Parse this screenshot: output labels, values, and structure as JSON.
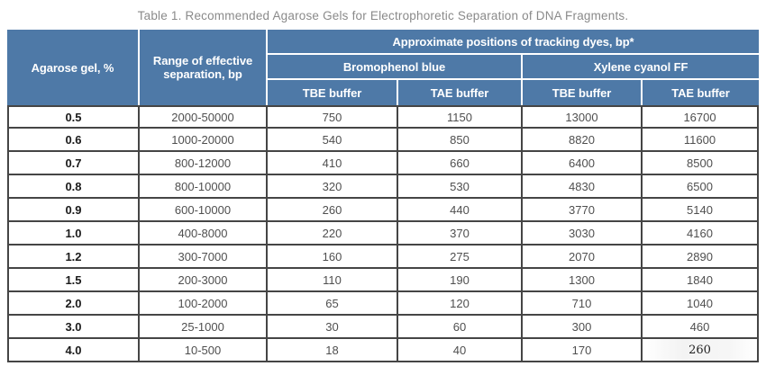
{
  "title": "Table 1. Recommended Agarose Gels for Electrophoretic Separation of DNA Fragments.",
  "colors": {
    "header_bg": "#4e79a7",
    "header_text": "#ffffff",
    "grid_border": "#454545",
    "title_text": "#8a8a8a",
    "data_text": "#4f4f4f",
    "gel_column_text": "#1a1a1a"
  },
  "table": {
    "header": {
      "col_agarose": "Agarose gel, %",
      "col_range": "Range of effective separation, bp",
      "group_title": "Approximate positions of tracking dyes, bp*",
      "subgroups": [
        "Bromophenol blue",
        "Xylene cyanol FF"
      ],
      "buffer_cols": [
        "TBE buffer",
        "TAE buffer",
        "TBE buffer",
        "TAE buffer"
      ]
    },
    "rows": [
      {
        "gel": "0.5",
        "range": "2000-50000",
        "values": [
          "750",
          "1150",
          "13000",
          "16700"
        ]
      },
      {
        "gel": "0.6",
        "range": "1000-20000",
        "values": [
          "540",
          "850",
          "8820",
          "11600"
        ]
      },
      {
        "gel": "0.7",
        "range": "800-12000",
        "values": [
          "410",
          "660",
          "6400",
          "8500"
        ]
      },
      {
        "gel": "0.8",
        "range": "800-10000",
        "values": [
          "320",
          "530",
          "4830",
          "6500"
        ]
      },
      {
        "gel": "0.9",
        "range": "600-10000",
        "values": [
          "260",
          "440",
          "3770",
          "5140"
        ]
      },
      {
        "gel": "1.0",
        "range": "400-8000",
        "values": [
          "220",
          "370",
          "3030",
          "4160"
        ]
      },
      {
        "gel": "1.2",
        "range": "300-7000",
        "values": [
          "160",
          "275",
          "2070",
          "2890"
        ]
      },
      {
        "gel": "1.5",
        "range": "200-3000",
        "values": [
          "110",
          "190",
          "1300",
          "1840"
        ]
      },
      {
        "gel": "2.0",
        "range": "100-2000",
        "values": [
          "65",
          "120",
          "710",
          "1040"
        ]
      },
      {
        "gel": "3.0",
        "range": "25-1000",
        "values": [
          "30",
          "60",
          "300",
          "460"
        ]
      },
      {
        "gel": "4.0",
        "range": "10-500",
        "values": [
          "18",
          "40",
          "170",
          "260"
        ]
      }
    ]
  },
  "chart_data": {
    "type": "table",
    "title": "Table 1. Recommended Agarose Gels for Electrophoretic Separation of DNA Fragments.",
    "columns": [
      "Agarose gel, %",
      "Range of effective separation, bp",
      "Bromophenol blue TBE buffer",
      "Bromophenol blue TAE buffer",
      "Xylene cyanol FF TBE buffer",
      "Xylene cyanol FF TAE buffer"
    ],
    "group_header": "Approximate positions of tracking dyes, bp*",
    "rows": [
      [
        "0.5",
        "2000-50000",
        750,
        1150,
        13000,
        16700
      ],
      [
        "0.6",
        "1000-20000",
        540,
        850,
        8820,
        11600
      ],
      [
        "0.7",
        "800-12000",
        410,
        660,
        6400,
        8500
      ],
      [
        "0.8",
        "800-10000",
        320,
        530,
        4830,
        6500
      ],
      [
        "0.9",
        "600-10000",
        260,
        440,
        3770,
        5140
      ],
      [
        "1.0",
        "400-8000",
        220,
        370,
        3030,
        4160
      ],
      [
        "1.2",
        "300-7000",
        160,
        275,
        2070,
        2890
      ],
      [
        "1.5",
        "200-3000",
        110,
        190,
        1300,
        1840
      ],
      [
        "2.0",
        "100-2000",
        65,
        120,
        710,
        1040
      ],
      [
        "3.0",
        "25-1000",
        30,
        60,
        300,
        460
      ],
      [
        "4.0",
        "10-500",
        18,
        40,
        170,
        260
      ]
    ]
  }
}
